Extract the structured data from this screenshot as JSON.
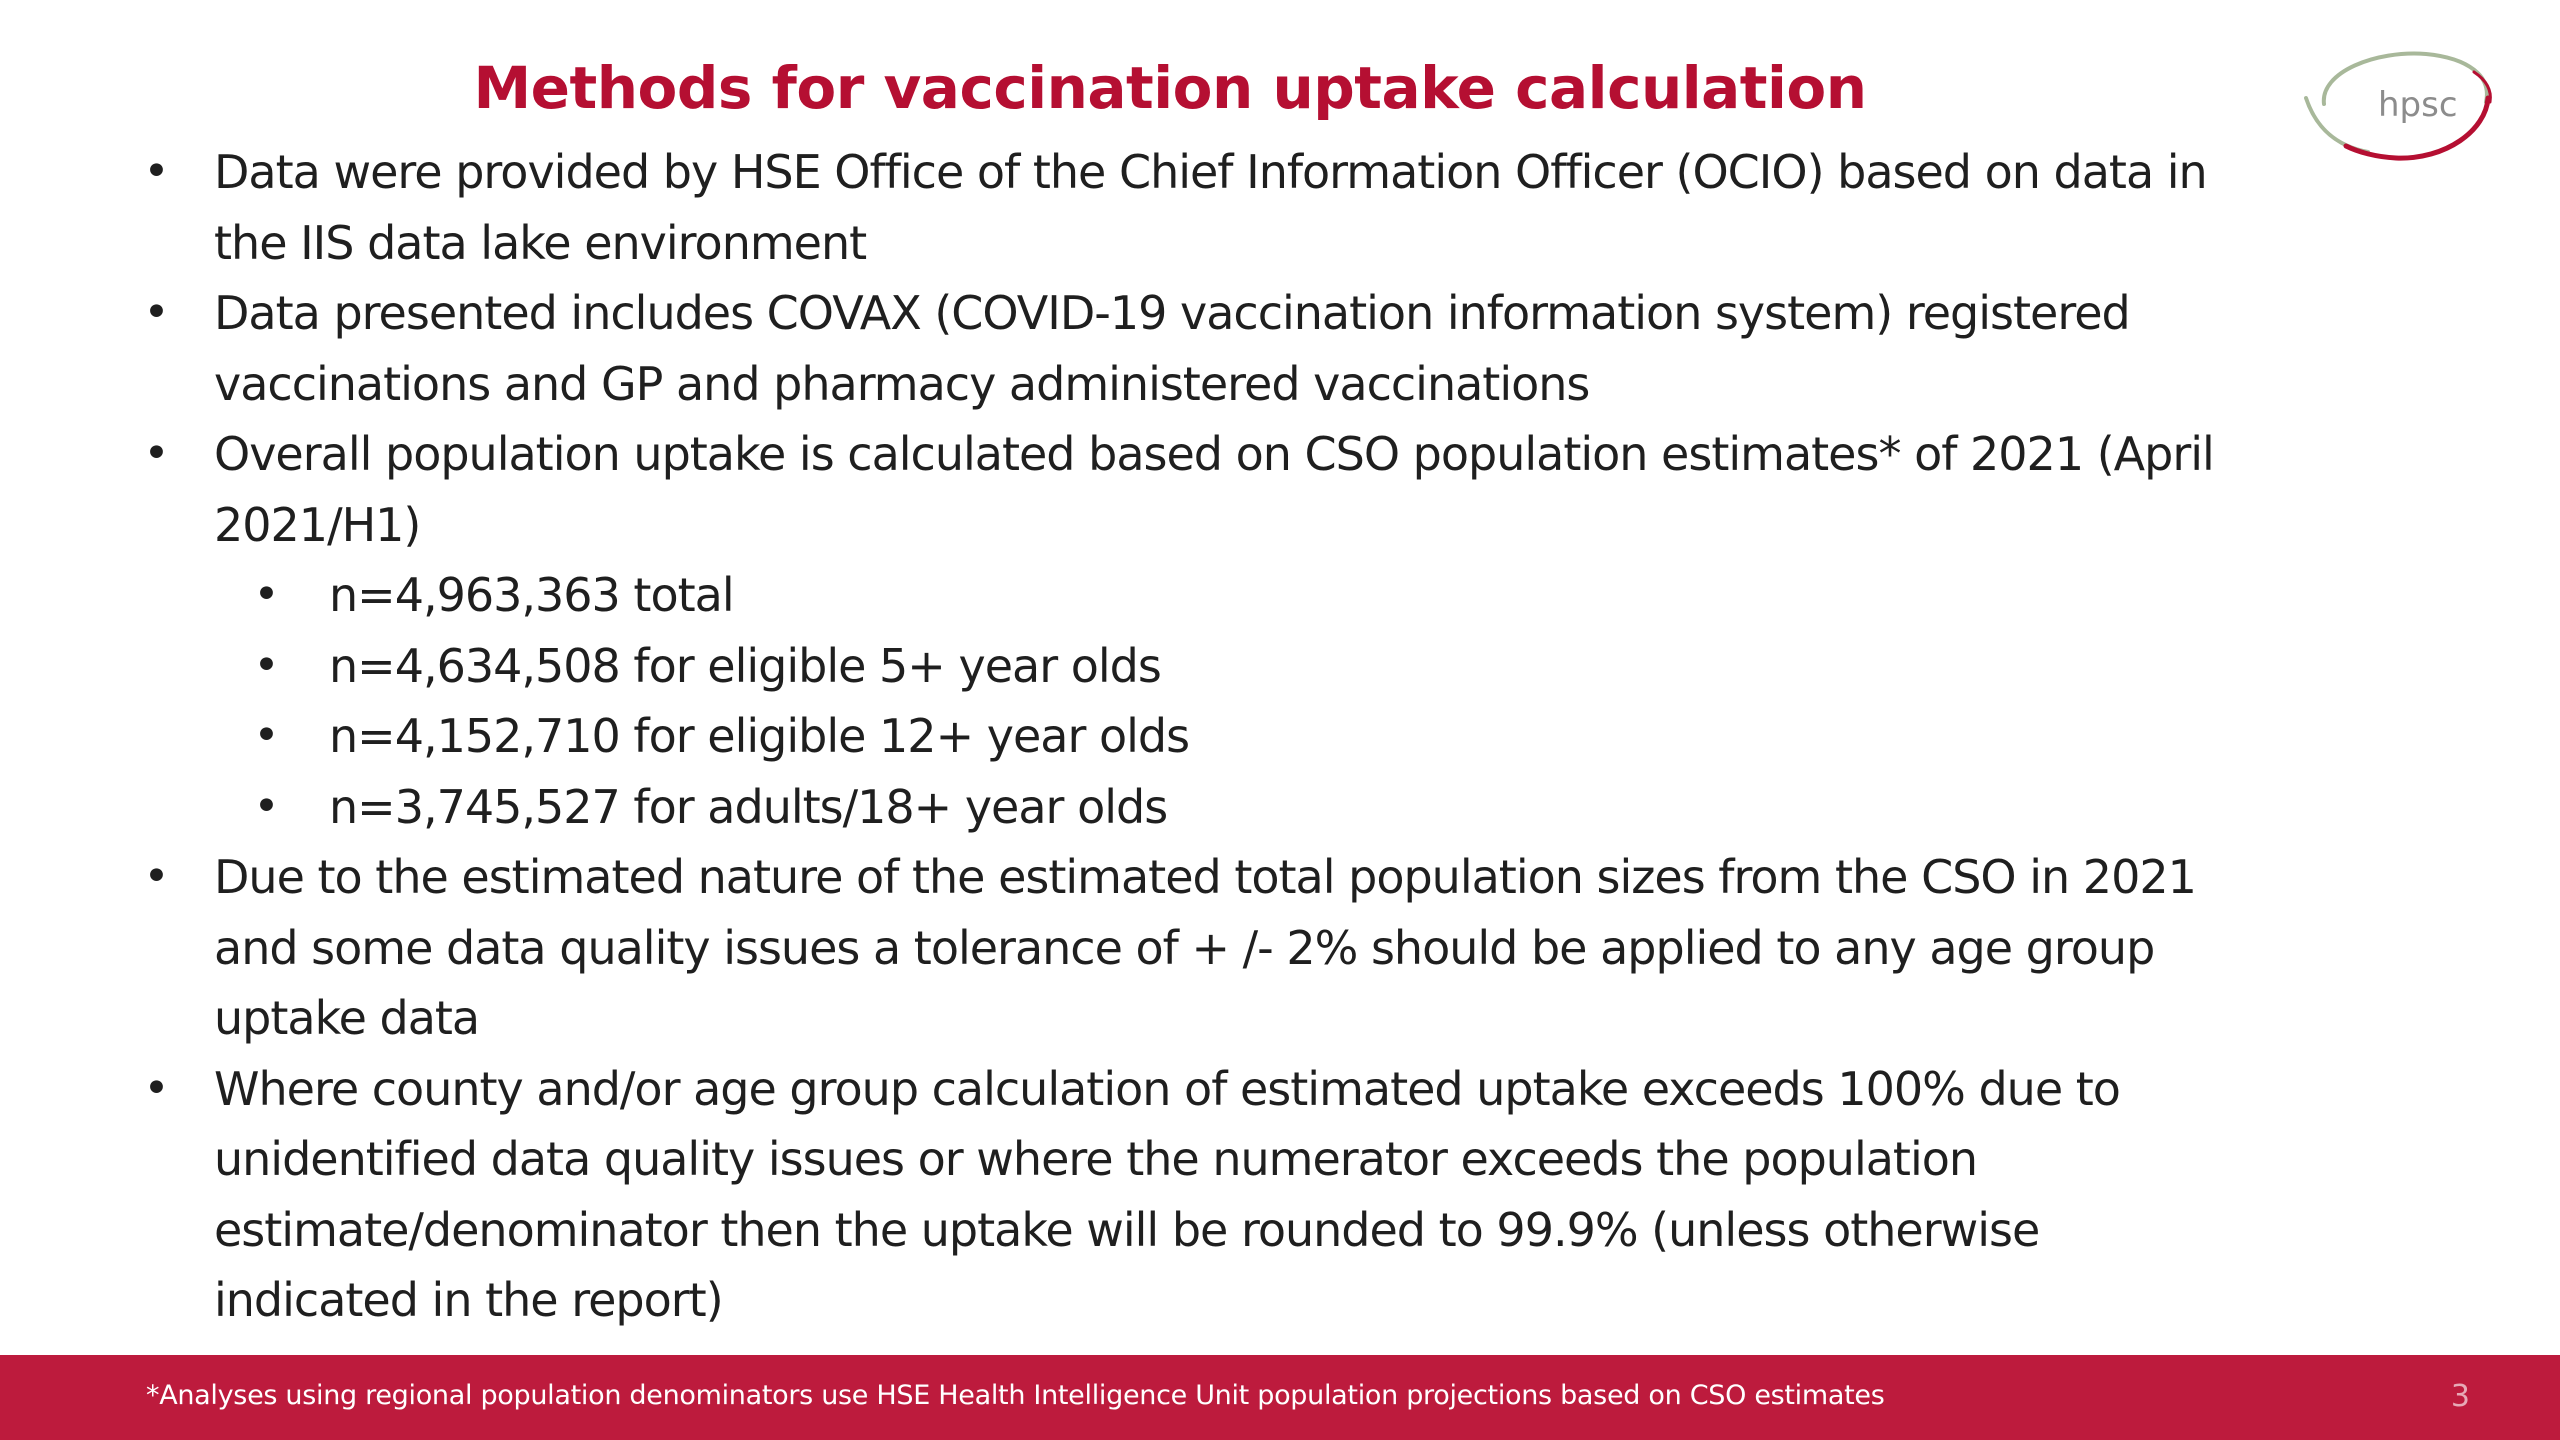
{
  "slide": {
    "title": "Methods for vaccination uptake calculation",
    "logo_text": "hpsc",
    "bullets": [
      {
        "lines": [
          "Data were provided by HSE Office of the Chief Information Officer (OCIO) based on data in",
          "the IIS data lake environment"
        ]
      },
      {
        "lines": [
          "Data presented includes COVAX (COVID-19 vaccination information system) registered",
          "vaccinations and GP and pharmacy administered vaccinations"
        ]
      },
      {
        "lines": [
          "Overall population uptake is calculated based on CSO population estimates* of 2021 (April",
          "2021/H1)"
        ],
        "sub_bullets": [
          "n=4,963,363 total",
          "n=4,634,508 for eligible 5+ year olds",
          "n=4,152,710 for eligible 12+ year olds",
          "n=3,745,527 for adults/18+ year olds"
        ]
      },
      {
        "lines": [
          "Due to the estimated nature of the estimated total population sizes from the CSO in 2021",
          "and some data quality issues a tolerance of + /- 2% should be applied to any age group",
          "uptake data"
        ]
      },
      {
        "lines": [
          "Where county and/or age group calculation of estimated uptake exceeds 100% due to",
          "unidentified data quality issues or where the numerator exceeds the population",
          "estimate/denominator then the uptake will be rounded to 99.9% (unless otherwise",
          "indicated in the report)"
        ]
      }
    ],
    "footnote": "*Analyses using regional population denominators use HSE Health Intelligence Unit population projections based on CSO estimates",
    "page_number": "3"
  },
  "colors": {
    "title": "#b50f32",
    "body_text": "#1f1f1f",
    "footer_bar": "#bd1b3d",
    "footer_text": "#ffffff",
    "page_number": "#e7a9b6",
    "logo_ring": "#a8b89a",
    "logo_accent": "#b50f32",
    "logo_text": "#8c8c8c"
  },
  "icons": {
    "logo": "hpsc-logo"
  }
}
